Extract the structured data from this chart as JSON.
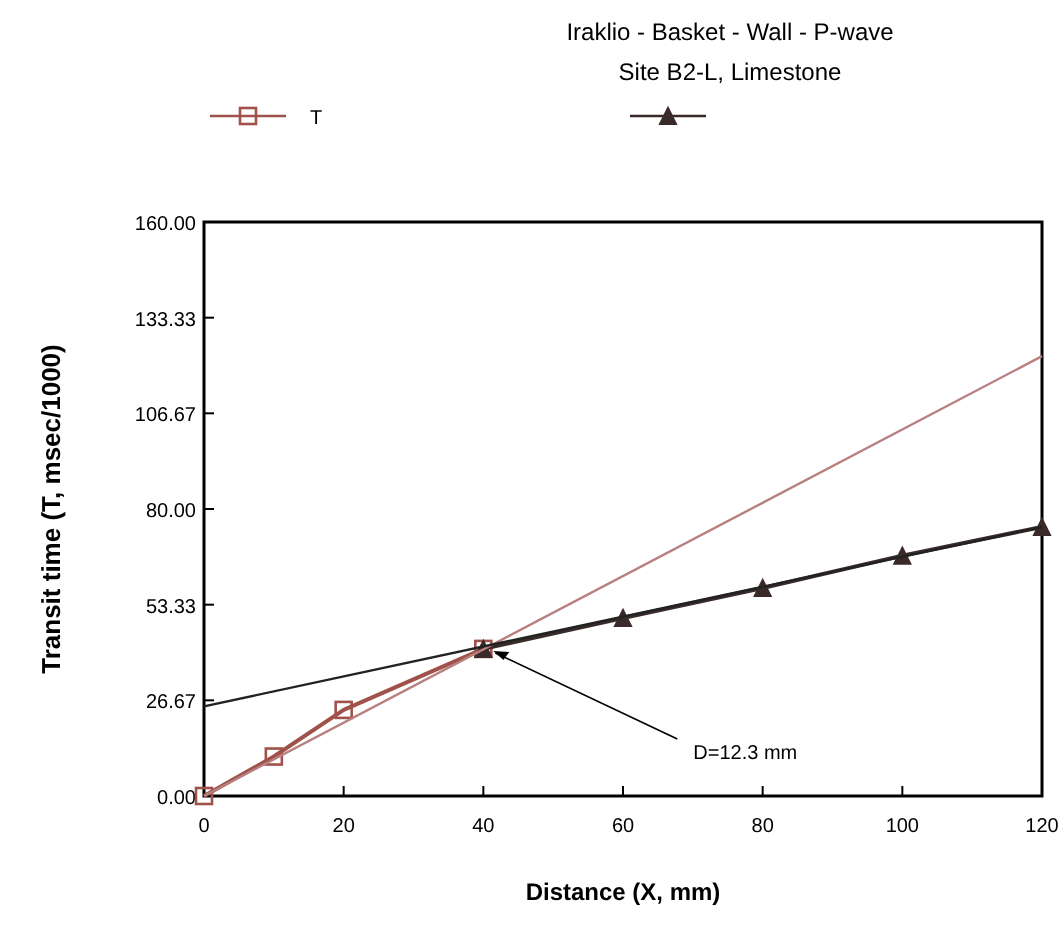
{
  "chart_data": {
    "type": "line",
    "title": "Iraklio - Basket - Wall - P-wave",
    "subtitle": "Site B2-L, Limestone",
    "xlabel": "Distance  (X, mm)",
    "ylabel": "Transit time  (T, msec/1000)",
    "xlim": [
      0,
      120
    ],
    "xticks": [
      0,
      20,
      40,
      60,
      80,
      100,
      120
    ],
    "ylim": [
      0,
      160
    ],
    "yticks": [
      {
        "value": 0,
        "label": "0.00"
      },
      26.67,
      53.33,
      {
        "value": 80,
        "label": "80.00"
      },
      106.67,
      133.33,
      {
        "value": 160,
        "label": "160.00"
      }
    ],
    "grid": false,
    "legend": "top",
    "line_style": "solid",
    "series": [
      {
        "name": "T",
        "color": "#a0524a",
        "marker": "square",
        "x": [
          0,
          10,
          20,
          40
        ],
        "values": [
          0,
          11,
          24,
          41
        ]
      },
      {
        "color": "#3a2a2a",
        "marker": "triangle",
        "x": [
          40,
          60,
          80,
          100,
          120
        ],
        "values": [
          41,
          49.6,
          58,
          67,
          75
        ]
      },
      {
        "type": "line",
        "color": "#b88080",
        "marker": "none",
        "x": [
          0,
          120
        ],
        "values": [
          0,
          122.6
        ]
      },
      {
        "type": "line",
        "color": "#222222",
        "marker": "none",
        "x": [
          0,
          120
        ],
        "values": [
          25,
          75
        ]
      }
    ],
    "annotations": [
      {
        "text": "D=12.3 mm",
        "x": 40,
        "y": 41
      }
    ]
  }
}
